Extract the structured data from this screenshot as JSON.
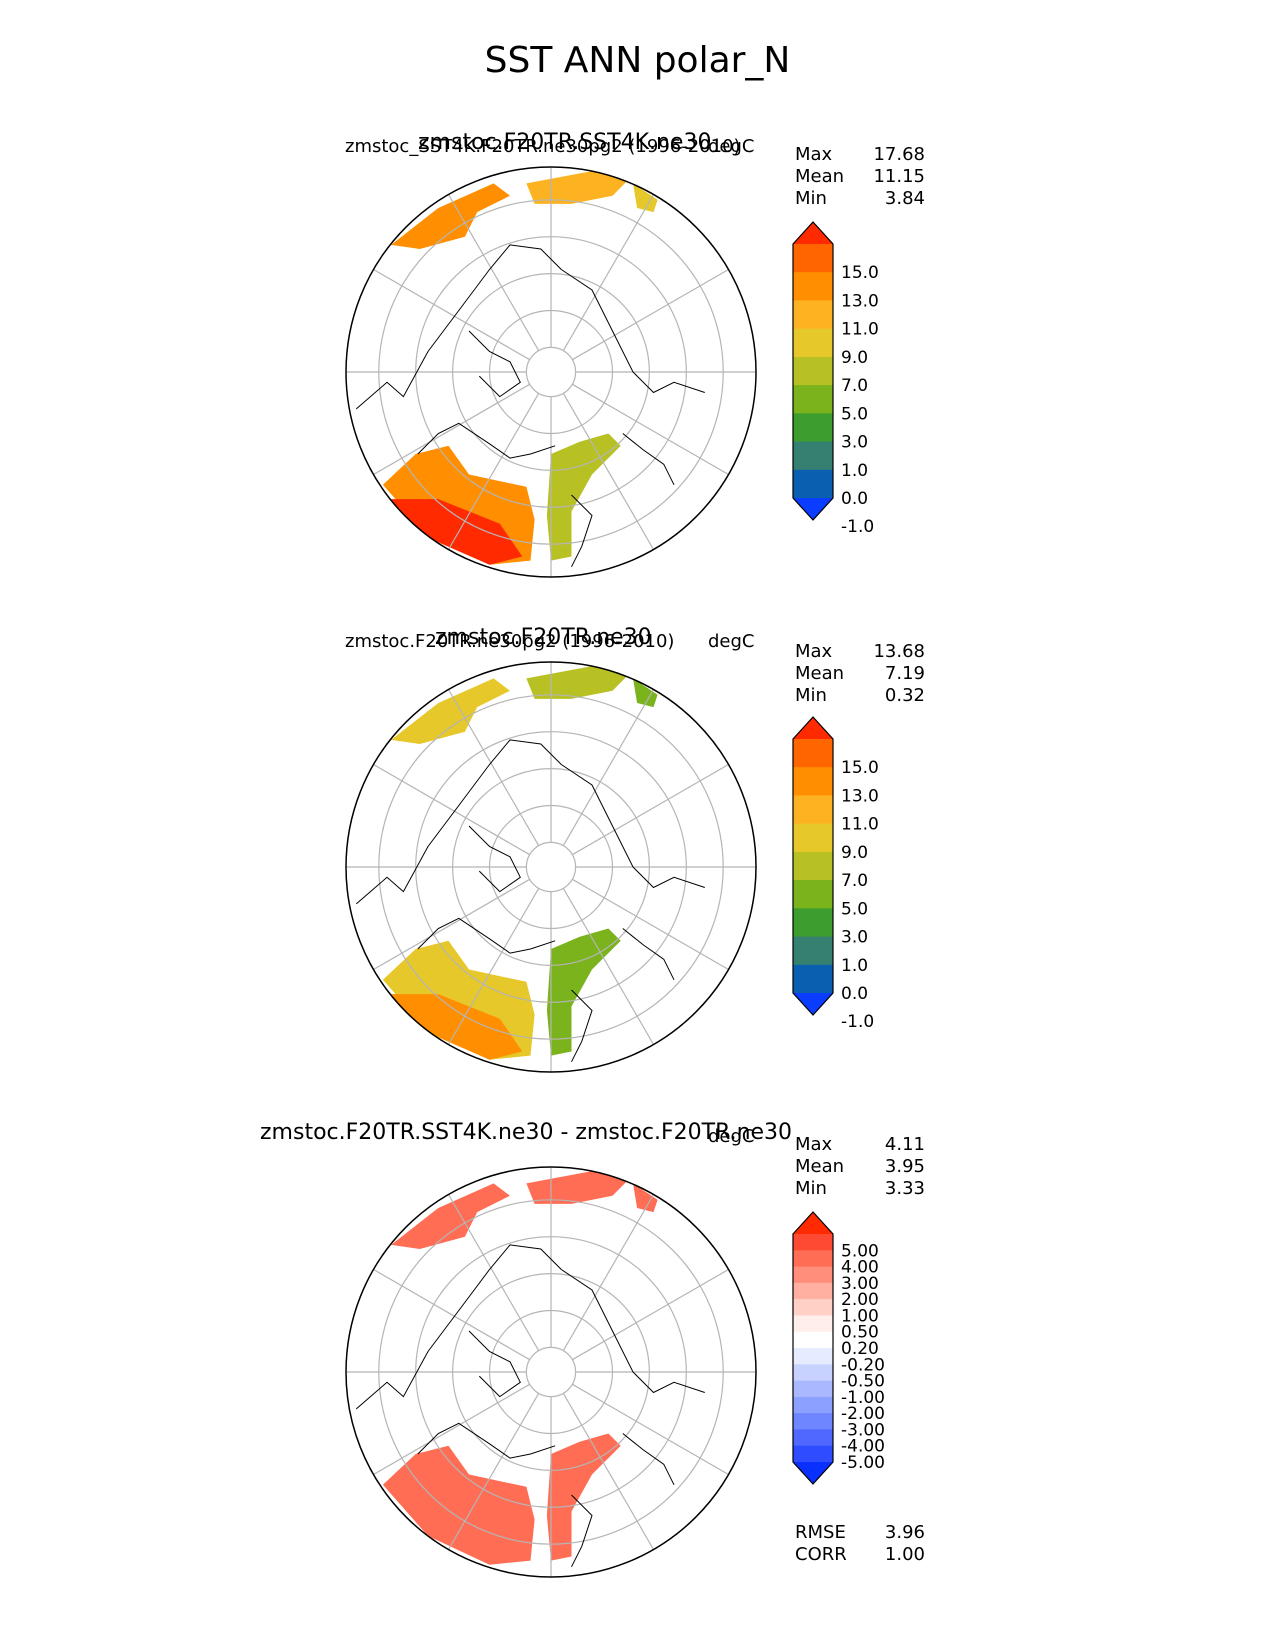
{
  "figure": {
    "title": "SST ANN polar_N"
  },
  "chart_data": [
    {
      "type": "heatmap",
      "projection": "north-polar-stereographic",
      "title": "zmstoc.F20TR.SST4K.ne30",
      "subtitle_left": "zmstoc_SST4K.F20TR.ne30pg2 (1996-2010)",
      "subtitle_right": "degC",
      "stats": [
        {
          "label": "Max",
          "value": "17.68"
        },
        {
          "label": "Mean",
          "value": "11.15"
        },
        {
          "label": "Min",
          "value": "3.84"
        }
      ],
      "colorbar": {
        "ticks": [
          "15.0",
          "13.0",
          "11.0",
          "9.0",
          "7.0",
          "5.0",
          "3.0",
          "1.0",
          "0.0",
          "-1.0"
        ],
        "colors": [
          "#ff2a00",
          "#ff6600",
          "#ff8f00",
          "#fdb321",
          "#e6c82a",
          "#b7c124",
          "#7ab31c",
          "#3d9e2f",
          "#358070",
          "#0a60b0",
          "#0a3dff"
        ]
      }
    },
    {
      "type": "heatmap",
      "projection": "north-polar-stereographic",
      "title": "zmstoc.F20TR.ne30",
      "subtitle_left": "zmstoc.F20TR.ne30pg2 (1996-2010)",
      "subtitle_right": "degC",
      "stats": [
        {
          "label": "Max",
          "value": "13.68"
        },
        {
          "label": "Mean",
          "value": "7.19"
        },
        {
          "label": "Min",
          "value": "0.32"
        }
      ],
      "colorbar": {
        "ticks": [
          "15.0",
          "13.0",
          "11.0",
          "9.0",
          "7.0",
          "5.0",
          "3.0",
          "1.0",
          "0.0",
          "-1.0"
        ],
        "colors": [
          "#ff2a00",
          "#ff6600",
          "#ff8f00",
          "#fdb321",
          "#e6c82a",
          "#b7c124",
          "#7ab31c",
          "#3d9e2f",
          "#358070",
          "#0a60b0",
          "#0a3dff"
        ]
      }
    },
    {
      "type": "heatmap",
      "projection": "north-polar-stereographic",
      "title": "zmstoc.F20TR.SST4K.ne30 - zmstoc.F20TR.ne30",
      "subtitle_right": "degC",
      "stats": [
        {
          "label": "Max",
          "value": "4.11"
        },
        {
          "label": "Mean",
          "value": "3.95"
        },
        {
          "label": "Min",
          "value": "3.33"
        }
      ],
      "metrics": [
        {
          "label": "RMSE",
          "value": "3.96"
        },
        {
          "label": "CORR",
          "value": "1.00"
        }
      ],
      "colorbar": {
        "ticks": [
          "5.00",
          "4.00",
          "3.00",
          "2.00",
          "1.00",
          "0.50",
          "0.20",
          "-0.20",
          "-0.50",
          "-1.00",
          "-2.00",
          "-3.00",
          "-4.00",
          "-5.00"
        ],
        "colors": [
          "#ff2a00",
          "#ff4a33",
          "#ff6d55",
          "#ff8f7a",
          "#ffb0a0",
          "#ffd0c6",
          "#ffeeea",
          "#ffffff",
          "#e6ebff",
          "#c8d2ff",
          "#aab8ff",
          "#8ca0ff",
          "#6e86ff",
          "#5068ff",
          "#2f4cff",
          "#0a30ff"
        ]
      }
    }
  ]
}
